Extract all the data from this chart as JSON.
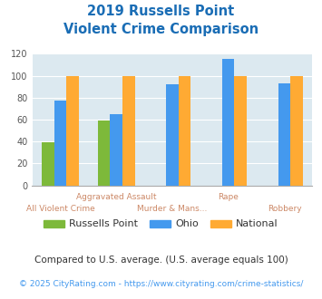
{
  "title_line1": "2019 Russells Point",
  "title_line2": "Violent Crime Comparison",
  "categories_top": [
    "",
    "Aggravated Assault",
    "",
    "Rape",
    ""
  ],
  "categories_bottom": [
    "All Violent Crime",
    "",
    "Murder & Mans...",
    "",
    "Robbery"
  ],
  "russells_point": [
    39,
    59,
    null,
    null,
    null
  ],
  "ohio": [
    77,
    65,
    92,
    115,
    93
  ],
  "national": [
    100,
    100,
    100,
    100,
    100
  ],
  "bar_color_rp": "#7db93a",
  "bar_color_ohio": "#4499ee",
  "bar_color_national": "#ffaa33",
  "title_color": "#1a6db5",
  "xlabel_top_color": "#cc8866",
  "xlabel_bottom_color": "#cc8866",
  "background_color": "#dce9f0",
  "ylim": [
    0,
    120
  ],
  "yticks": [
    0,
    20,
    40,
    60,
    80,
    100,
    120
  ],
  "legend_label_rp": "Russells Point",
  "legend_label_ohio": "Ohio",
  "legend_label_national": "National",
  "footnote1": "Compared to U.S. average. (U.S. average equals 100)",
  "footnote2": "© 2025 CityRating.com - https://www.cityrating.com/crime-statistics/",
  "footnote1_color": "#333333",
  "footnote2_color": "#4499ee"
}
